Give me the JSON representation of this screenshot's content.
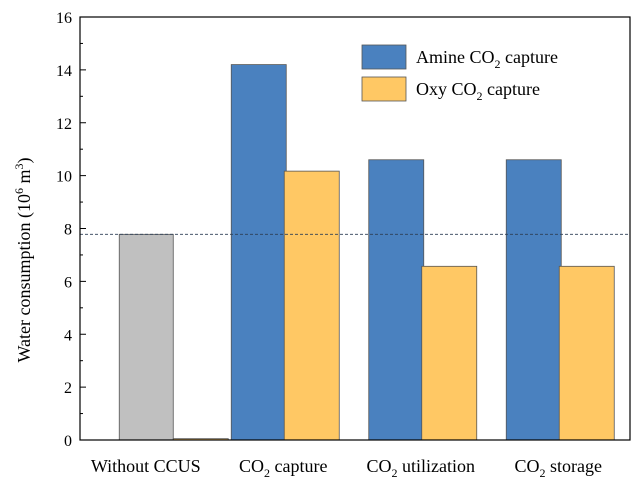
{
  "chart_data": {
    "type": "bar",
    "ylabel": {
      "main": "Water consumption (10",
      "sup": "6",
      "mid": " m",
      "sup2": "3",
      "end": ")"
    },
    "ylim": [
      0,
      16
    ],
    "yticks": [
      0,
      2,
      4,
      6,
      8,
      10,
      12,
      14,
      16
    ],
    "categories": [
      {
        "pre": "Without CCUS",
        "sub": "",
        "post": ""
      },
      {
        "pre": "CO",
        "sub": "2",
        "post": " capture"
      },
      {
        "pre": "CO",
        "sub": "2",
        "post": " utilization"
      },
      {
        "pre": "CO",
        "sub": "2",
        "post": " storage"
      }
    ],
    "baseline": {
      "value": 7.78,
      "color": "#c0c0c0"
    },
    "reference_line": 7.78,
    "series": [
      {
        "name": {
          "pre": "Amine CO",
          "sub": "2",
          "post": " capture"
        },
        "color": "#4a81bf",
        "values": [
          null,
          14.2,
          10.6,
          10.6
        ]
      },
      {
        "name": {
          "pre": "Oxy CO",
          "sub": "2",
          "post": " capture"
        },
        "color": "#ffc864",
        "values": [
          0.05,
          10.17,
          6.57,
          6.57
        ]
      }
    ],
    "legend_position": "top-right",
    "grid": false
  }
}
